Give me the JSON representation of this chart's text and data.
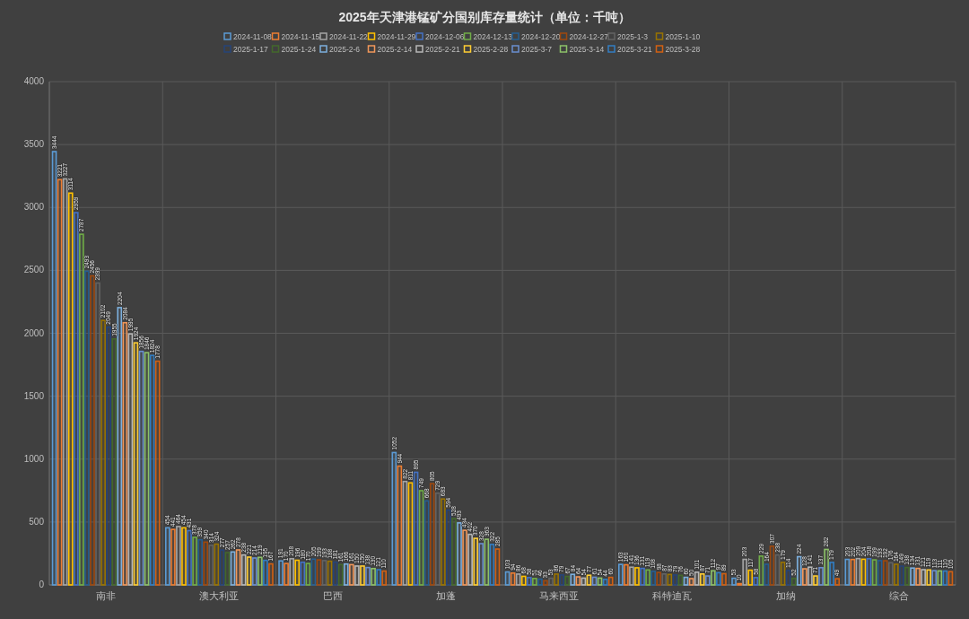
{
  "chart_data": {
    "type": "bar",
    "title": "2025年天津港锰矿分国别库存量统计（单位：千吨）",
    "categories": [
      "南非",
      "澳大利亚",
      "巴西",
      "加蓬",
      "马来西亚",
      "科特迪瓦",
      "加纳",
      "综合"
    ],
    "ylim": [
      0,
      4000
    ],
    "yticks": [
      0,
      500,
      1000,
      1500,
      2000,
      2500,
      3000,
      3500,
      4000
    ],
    "grid": true,
    "legend": "top",
    "data_labels": true,
    "series": [
      {
        "name": "2024-11-08",
        "color": "#5b9bd5",
        "values": [
          3444,
          454,
          191,
          1052,
          103,
          163,
          53,
          203
        ]
      },
      {
        "name": "2024-11-15",
        "color": "#ed7d31",
        "values": [
          3221,
          441,
          170,
          944,
          94,
          160,
          10,
          202
        ]
      },
      {
        "name": "2024-11-22",
        "color": "#a5a5a5",
        "values": [
          3227,
          464,
          208,
          822,
          86,
          141,
          203,
          209
        ]
      },
      {
        "name": "2024-11-29",
        "color": "#ffc000",
        "values": [
          3114,
          454,
          196,
          811,
          68,
          136,
          117,
          204
        ]
      },
      {
        "name": "2024-12-06",
        "color": "#4472c4",
        "values": [
          2959,
          431,
          180,
          895,
          58,
          131,
          58,
          208
        ]
      },
      {
        "name": "2024-12-13",
        "color": "#70ad47",
        "values": [
          2787,
          378,
          170,
          749,
          51,
          119,
          229,
          199
        ]
      },
      {
        "name": "2024-12-20",
        "color": "#255e91",
        "values": [
          2493,
          359,
          205,
          668,
          46,
          108,
          164,
          193
        ]
      },
      {
        "name": "2024-12-27",
        "color": "#9e480e",
        "values": [
          2456,
          340,
          199,
          805,
          33,
          98,
          307,
          192
        ]
      },
      {
        "name": "2025-1-3",
        "color": "#636363",
        "values": [
          2399,
          314,
          193,
          729,
          53,
          87,
          238,
          176
        ]
      },
      {
        "name": "2025-1-10",
        "color": "#997300",
        "values": [
          2102,
          324,
          188,
          683,
          86,
          83,
          179,
          164
        ]
      },
      {
        "name": "2025-1-17",
        "color": "#264478",
        "values": [
          2049,
          277,
          181,
          594,
          79,
          79,
          114,
          149
        ]
      },
      {
        "name": "2025-1-24",
        "color": "#43682b",
        "values": [
          1955,
          257,
          161,
          528,
          67,
          76,
          52,
          138
        ]
      },
      {
        "name": "2025-2-6",
        "color": "#7cafdd",
        "values": [
          2204,
          262,
          166,
          493,
          84,
          60,
          224,
          134
        ]
      },
      {
        "name": "2025-2-14",
        "color": "#f1975a",
        "values": [
          2084,
          278,
          161,
          434,
          64,
          50,
          128,
          131
        ]
      },
      {
        "name": "2025-2-21",
        "color": "#b7b7b7",
        "values": [
          1995,
          238,
          150,
          402,
          54,
          101,
          141,
          121
        ]
      },
      {
        "name": "2025-2-28",
        "color": "#ffcd33",
        "values": [
          1924,
          221,
          150,
          370,
          77,
          87,
          71,
          119
        ]
      },
      {
        "name": "2025-3-7",
        "color": "#698ed0",
        "values": [
          1856,
          214,
          138,
          328,
          61,
          71,
          137,
          113
        ]
      },
      {
        "name": "2025-3-14",
        "color": "#8cc168",
        "values": [
          1846,
          219,
          130,
          363,
          54,
          112,
          282,
          111
        ]
      },
      {
        "name": "2025-3-21",
        "color": "#327dc2",
        "values": [
          1824,
          195,
          121,
          322,
          44,
          97,
          179,
          110
        ]
      },
      {
        "name": "2025-3-28",
        "color": "#d26012",
        "values": [
          1778,
          167,
          110,
          285,
          60,
          89,
          49,
          105
        ]
      }
    ]
  }
}
